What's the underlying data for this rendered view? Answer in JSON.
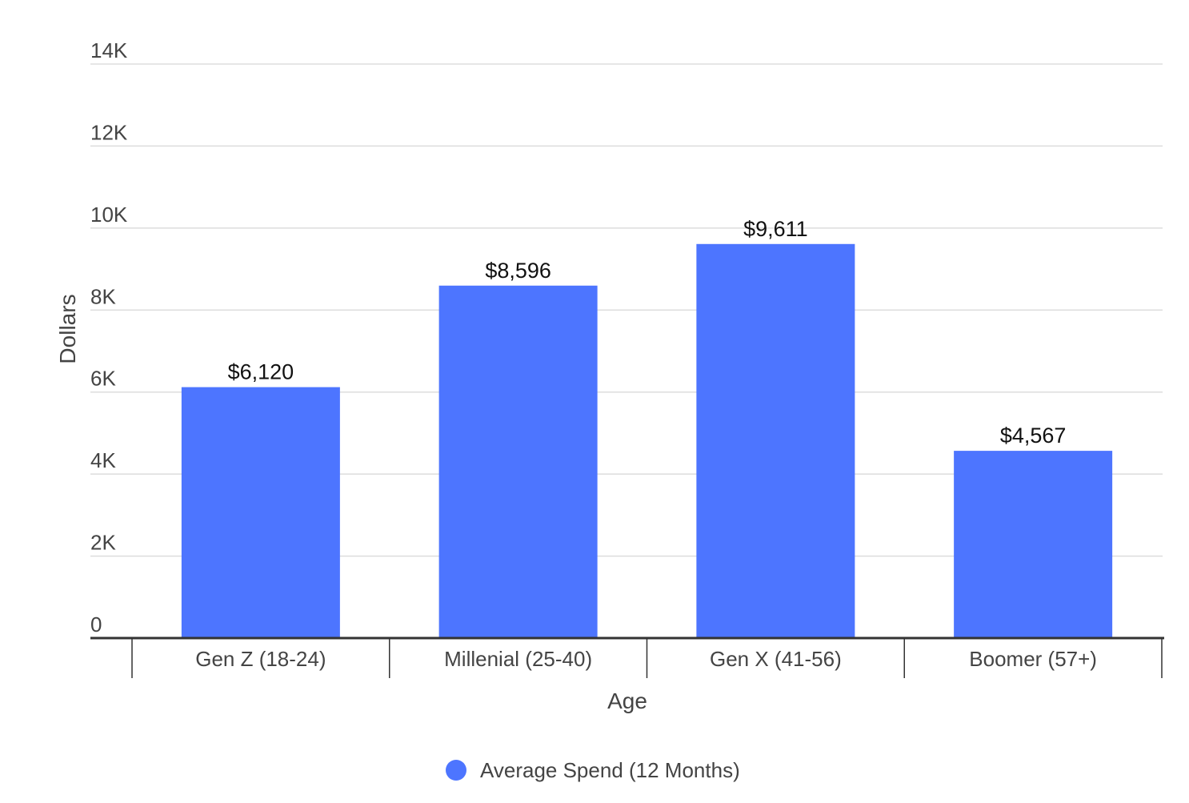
{
  "chart_data": {
    "type": "bar",
    "categories": [
      "Gen Z (18-24)",
      "Millenial (25-40)",
      "Gen X (41-56)",
      "Boomer (57+)"
    ],
    "series": [
      {
        "name": "Average Spend (12 Months)",
        "values": [
          6120,
          8596,
          9611,
          4567
        ],
        "data_labels": [
          "$6,120",
          "$8,596",
          "$9,611",
          "$4,567"
        ],
        "color": "#4d75ff"
      }
    ],
    "xlabel": "Age",
    "ylabel": "Dollars",
    "ylim": [
      0,
      14000
    ],
    "yticks": [
      {
        "value": 0,
        "label": "0"
      },
      {
        "value": 2000,
        "label": "2K"
      },
      {
        "value": 4000,
        "label": "4K"
      },
      {
        "value": 6000,
        "label": "6K"
      },
      {
        "value": 8000,
        "label": "8K"
      },
      {
        "value": 10000,
        "label": "10K"
      },
      {
        "value": 12000,
        "label": "12K"
      },
      {
        "value": 14000,
        "label": "14K"
      }
    ],
    "grid": true,
    "legend": {
      "position": "bottom"
    }
  },
  "colors": {
    "bar": "#4d75ff",
    "grid": "#dddddd",
    "axis": "#333333",
    "text": "#444444",
    "label": "#111111"
  }
}
